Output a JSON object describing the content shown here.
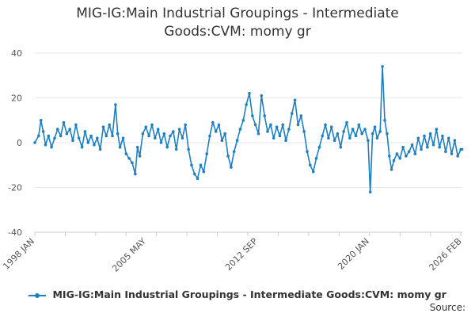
{
  "title_line1": "MIG-IG:Main Industrial Groupings - Intermediate",
  "title_line2": "Goods:CVM: momy gr",
  "source_label": "Source:",
  "chart_data": {
    "type": "line",
    "title": "MIG-IG:Main Industrial Groupings - Intermediate Goods:CVM: momy gr",
    "xlabel": "",
    "ylabel": "",
    "ylim": [
      -40,
      40
    ],
    "yticks": [
      40,
      20,
      0,
      -20,
      -40
    ],
    "xlim": [
      1998.0,
      2026.1
    ],
    "xticks": [
      {
        "label": "1998 JAN",
        "x": 1998.0
      },
      {
        "label": "2005 MAY",
        "x": 2005.33
      },
      {
        "label": "2012 SEP",
        "x": 2012.67
      },
      {
        "label": "2020 JAN",
        "x": 2020.0
      },
      {
        "label": "2026 FEB",
        "x": 2026.08
      }
    ],
    "grid": true,
    "color": "#1f7fc0",
    "series": [
      {
        "name": "MIG-IG:Main Industrial Groupings - Intermediate Goods:CVM: momy gr",
        "points": [
          [
            1998.0,
            0
          ],
          [
            1998.25,
            3
          ],
          [
            1998.4,
            10
          ],
          [
            1998.55,
            5
          ],
          [
            1998.7,
            -1
          ],
          [
            1998.9,
            3
          ],
          [
            1999.1,
            -2
          ],
          [
            1999.3,
            2
          ],
          [
            1999.5,
            6
          ],
          [
            1999.7,
            3
          ],
          [
            1999.9,
            9
          ],
          [
            2000.1,
            4
          ],
          [
            2000.3,
            6
          ],
          [
            2000.5,
            1
          ],
          [
            2000.7,
            8
          ],
          [
            2000.9,
            2
          ],
          [
            2001.1,
            -2
          ],
          [
            2001.3,
            5
          ],
          [
            2001.5,
            0
          ],
          [
            2001.7,
            3
          ],
          [
            2001.9,
            -1
          ],
          [
            2002.1,
            2
          ],
          [
            2002.3,
            -3
          ],
          [
            2002.5,
            7
          ],
          [
            2002.7,
            3
          ],
          [
            2002.9,
            8
          ],
          [
            2003.1,
            3
          ],
          [
            2003.3,
            17
          ],
          [
            2003.45,
            4
          ],
          [
            2003.6,
            -2
          ],
          [
            2003.8,
            2
          ],
          [
            2004.0,
            -5
          ],
          [
            2004.2,
            -7
          ],
          [
            2004.4,
            -9
          ],
          [
            2004.6,
            -14
          ],
          [
            2004.75,
            -2
          ],
          [
            2004.9,
            -6
          ],
          [
            2005.1,
            4
          ],
          [
            2005.3,
            7
          ],
          [
            2005.5,
            3
          ],
          [
            2005.7,
            8
          ],
          [
            2005.9,
            2
          ],
          [
            2006.1,
            6
          ],
          [
            2006.3,
            0
          ],
          [
            2006.5,
            4
          ],
          [
            2006.7,
            -2
          ],
          [
            2006.9,
            3
          ],
          [
            2007.1,
            5
          ],
          [
            2007.3,
            -3
          ],
          [
            2007.5,
            6
          ],
          [
            2007.7,
            2
          ],
          [
            2007.9,
            8
          ],
          [
            2008.1,
            -3
          ],
          [
            2008.3,
            -10
          ],
          [
            2008.5,
            -14
          ],
          [
            2008.7,
            -16
          ],
          [
            2008.9,
            -10
          ],
          [
            2009.1,
            -13
          ],
          [
            2009.3,
            -5
          ],
          [
            2009.5,
            3
          ],
          [
            2009.7,
            9
          ],
          [
            2009.9,
            5
          ],
          [
            2010.1,
            8
          ],
          [
            2010.3,
            1
          ],
          [
            2010.5,
            4
          ],
          [
            2010.7,
            -6
          ],
          [
            2010.9,
            -11
          ],
          [
            2011.1,
            -4
          ],
          [
            2011.3,
            1
          ],
          [
            2011.5,
            6
          ],
          [
            2011.7,
            10
          ],
          [
            2011.9,
            17
          ],
          [
            2012.1,
            22
          ],
          [
            2012.3,
            12
          ],
          [
            2012.5,
            8
          ],
          [
            2012.7,
            4
          ],
          [
            2012.9,
            21
          ],
          [
            2013.1,
            12
          ],
          [
            2013.3,
            5
          ],
          [
            2013.5,
            8
          ],
          [
            2013.7,
            2
          ],
          [
            2013.9,
            7
          ],
          [
            2014.1,
            3
          ],
          [
            2014.3,
            8
          ],
          [
            2014.5,
            1
          ],
          [
            2014.7,
            6
          ],
          [
            2014.9,
            13
          ],
          [
            2015.1,
            19
          ],
          [
            2015.3,
            8
          ],
          [
            2015.5,
            12
          ],
          [
            2015.7,
            5
          ],
          [
            2015.9,
            -4
          ],
          [
            2016.1,
            -10
          ],
          [
            2016.3,
            -13
          ],
          [
            2016.5,
            -7
          ],
          [
            2016.7,
            -2
          ],
          [
            2016.9,
            3
          ],
          [
            2017.1,
            8
          ],
          [
            2017.3,
            2
          ],
          [
            2017.5,
            7
          ],
          [
            2017.7,
            1
          ],
          [
            2017.9,
            4
          ],
          [
            2018.1,
            -2
          ],
          [
            2018.3,
            5
          ],
          [
            2018.5,
            9
          ],
          [
            2018.7,
            2
          ],
          [
            2018.9,
            6
          ],
          [
            2019.1,
            3
          ],
          [
            2019.3,
            8
          ],
          [
            2019.5,
            4
          ],
          [
            2019.7,
            6
          ],
          [
            2019.9,
            1
          ],
          [
            2020.05,
            -22
          ],
          [
            2020.2,
            4
          ],
          [
            2020.35,
            7
          ],
          [
            2020.5,
            2
          ],
          [
            2020.7,
            5
          ],
          [
            2020.85,
            34
          ],
          [
            2021.0,
            10
          ],
          [
            2021.15,
            4
          ],
          [
            2021.3,
            -6
          ],
          [
            2021.45,
            -12
          ],
          [
            2021.6,
            -8
          ],
          [
            2021.8,
            -5
          ],
          [
            2022.0,
            -7
          ],
          [
            2022.2,
            -2
          ],
          [
            2022.4,
            -6
          ],
          [
            2022.6,
            -4
          ],
          [
            2022.8,
            -1
          ],
          [
            2023.0,
            -5
          ],
          [
            2023.2,
            2
          ],
          [
            2023.4,
            -3
          ],
          [
            2023.6,
            3
          ],
          [
            2023.8,
            -2
          ],
          [
            2024.0,
            4
          ],
          [
            2024.2,
            -1
          ],
          [
            2024.4,
            6
          ],
          [
            2024.6,
            -2
          ],
          [
            2024.8,
            3
          ],
          [
            2025.0,
            -4
          ],
          [
            2025.2,
            2
          ],
          [
            2025.4,
            -5
          ],
          [
            2025.6,
            1
          ],
          [
            2025.8,
            -6
          ],
          [
            2026.0,
            -3
          ],
          [
            2026.08,
            -3
          ]
        ]
      }
    ]
  }
}
